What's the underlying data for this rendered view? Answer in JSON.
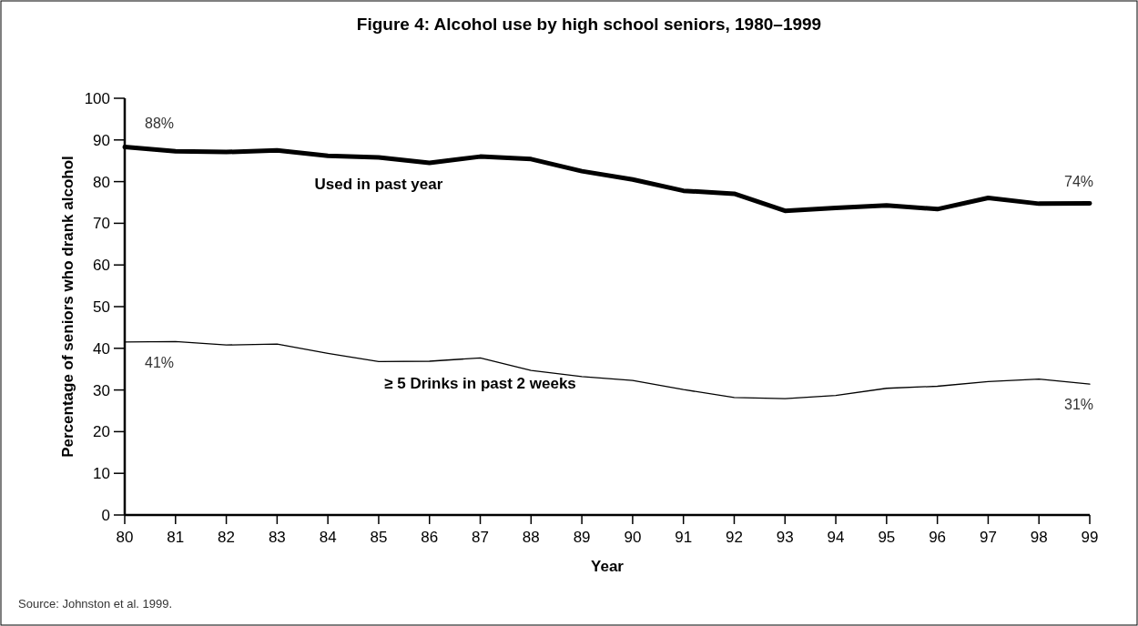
{
  "chart_data": {
    "type": "line",
    "title": "Figure 4:  Alcohol use by high school seniors, 1980–1999",
    "xlabel": "Year",
    "ylabel": "Percentage of seniors who drank alcohol",
    "categories": [
      "80",
      "81",
      "82",
      "83",
      "84",
      "85",
      "86",
      "87",
      "88",
      "89",
      "90",
      "91",
      "92",
      "93",
      "94",
      "95",
      "96",
      "97",
      "98",
      "99"
    ],
    "series": [
      {
        "name": "Used in past year",
        "color": "#000000",
        "values": [
          88.3,
          87.3,
          87.1,
          87.5,
          86.2,
          85.8,
          84.5,
          86.0,
          85.4,
          82.5,
          80.5,
          77.8,
          77.1,
          73.0,
          73.7,
          74.3,
          73.4,
          76.1,
          74.7,
          74.8
        ]
      },
      {
        "name": "≥ 5 Drinks in past 2 weeks",
        "color": "#000000",
        "values": [
          41.5,
          41.6,
          40.8,
          41.0,
          38.8,
          36.8,
          36.9,
          37.7,
          34.7,
          33.2,
          32.3,
          30.1,
          28.2,
          27.9,
          28.7,
          30.4,
          30.9,
          32.0,
          32.6,
          31.4
        ]
      }
    ],
    "ylim": [
      0,
      100
    ],
    "yticks": [
      0,
      10,
      20,
      30,
      40,
      50,
      60,
      70,
      80,
      90,
      100
    ],
    "grid": false,
    "legend": false,
    "marker": "none",
    "line_style": "solid",
    "annotations": [
      {
        "text": "88%",
        "x": "80",
        "y": 88
      },
      {
        "text": "41%",
        "x": "80",
        "y": 41
      },
      {
        "text": "74%",
        "x": "99",
        "y": 74
      },
      {
        "text": "31%",
        "x": "99",
        "y": 31
      },
      "Source:  Johnston et al. 1999."
    ]
  }
}
